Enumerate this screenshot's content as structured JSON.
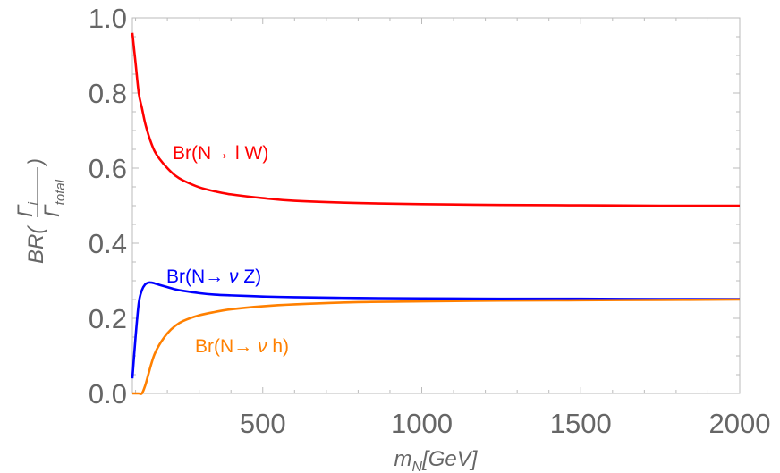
{
  "chart_data": {
    "type": "line",
    "xlabel": "m_N[GeV]",
    "ylabel": "BR(Γ_i / Γ_total)",
    "xlim": [
      90,
      2000
    ],
    "ylim": [
      0,
      1
    ],
    "grid": false,
    "xticks": [
      "500",
      "1000",
      "1500",
      "2000"
    ],
    "yticks": [
      "0.0",
      "0.2",
      "0.4",
      "0.6",
      "0.8",
      "1.0"
    ],
    "x": [
      90,
      100,
      110,
      120,
      130,
      140,
      150,
      160,
      175,
      200,
      225,
      250,
      300,
      350,
      400,
      500,
      600,
      800,
      1000,
      1250,
      1500,
      1750,
      2000
    ],
    "series": [
      {
        "name": "Br(N→ l W)",
        "color": "#ff0000",
        "values": [
          0.96,
          0.88,
          0.8,
          0.76,
          0.72,
          0.69,
          0.665,
          0.645,
          0.625,
          0.6,
          0.58,
          0.567,
          0.549,
          0.538,
          0.53,
          0.52,
          0.513,
          0.507,
          0.504,
          0.502,
          0.501,
          0.5,
          0.5
        ]
      },
      {
        "name": "Br(N→ ν Z)",
        "color": "#0000ff",
        "values": [
          0.04,
          0.15,
          0.24,
          0.275,
          0.29,
          0.295,
          0.295,
          0.293,
          0.289,
          0.283,
          0.277,
          0.273,
          0.267,
          0.263,
          0.261,
          0.258,
          0.256,
          0.254,
          0.253,
          0.252,
          0.252,
          0.251,
          0.251
        ]
      },
      {
        "name": "Br(N→ ν h)",
        "color": "#ff8000",
        "values": [
          0,
          0,
          0,
          0,
          0.02,
          0.05,
          0.08,
          0.105,
          0.13,
          0.16,
          0.18,
          0.193,
          0.208,
          0.217,
          0.224,
          0.232,
          0.237,
          0.243,
          0.245,
          0.247,
          0.248,
          0.249,
          0.25
        ]
      }
    ],
    "annotations": [
      {
        "text_main": "Br(N→ l W)",
        "prefix": "Br(N→ ",
        "sym": "l",
        "suffix": " W)",
        "color": "#ff0000"
      },
      {
        "text_main": "Br(N→ ν Z)",
        "prefix": "Br(N→ ",
        "sym": "ν",
        "suffix": " Z)",
        "color": "#0000ff"
      },
      {
        "text_main": "Br(N→ ν h)",
        "prefix": "Br(N→ ",
        "sym": "ν",
        "suffix": " h)",
        "color": "#ff8000"
      }
    ],
    "xlabel_parts": {
      "m": "m",
      "sub": "N",
      "unit": "[GeV]"
    },
    "ylabel_parts": {
      "br": "BR(",
      "num": "Γ",
      "num_sub": "i",
      "den": "Γ",
      "den_sub": "total",
      "close": ")"
    }
  }
}
